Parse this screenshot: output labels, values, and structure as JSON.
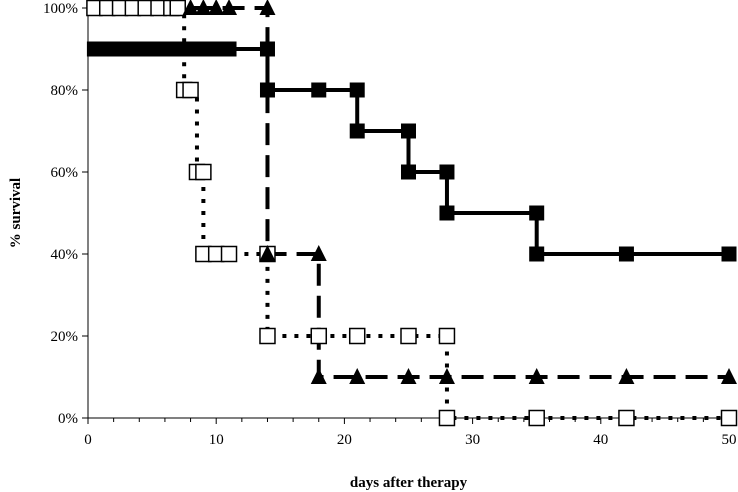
{
  "chart_data": {
    "type": "line",
    "step": true,
    "xlabel": "days after therapy",
    "ylabel": "% survival",
    "xlim": [
      0,
      50
    ],
    "ylim": [
      0,
      100
    ],
    "xticks": [
      0,
      10,
      20,
      30,
      40,
      50
    ],
    "yticks": [
      0,
      20,
      40,
      60,
      80,
      100
    ],
    "xtick_labels": [
      "0",
      "10",
      "20",
      "30",
      "40",
      "50"
    ],
    "ytick_labels": [
      "0%",
      "20%",
      "40%",
      "60%",
      "80%",
      "100%"
    ],
    "grid": false,
    "legend": "none",
    "series": [
      {
        "marker": "filled-square",
        "line": "solid",
        "color": "#000000",
        "x": [
          0.5,
          1,
          2,
          3,
          4,
          5,
          6,
          7,
          8,
          9,
          10,
          11,
          14,
          14,
          18,
          21,
          21,
          25,
          25,
          28,
          28,
          35,
          35,
          42,
          50
        ],
        "y": [
          90,
          90,
          90,
          90,
          90,
          90,
          90,
          90,
          90,
          90,
          90,
          90,
          90,
          80,
          80,
          80,
          70,
          70,
          60,
          60,
          50,
          50,
          40,
          40,
          40
        ]
      },
      {
        "marker": "open-square",
        "line": "dotted",
        "color": "#000000",
        "x": [
          0.5,
          1.5,
          2.5,
          3.5,
          4.5,
          5.5,
          6.5,
          7,
          7.5,
          8,
          8.5,
          9,
          9,
          10,
          11,
          14,
          14,
          18,
          21,
          25,
          28,
          28,
          35,
          42,
          50
        ],
        "y": [
          100,
          100,
          100,
          100,
          100,
          100,
          100,
          100,
          80,
          80,
          60,
          60,
          40,
          40,
          40,
          40,
          20,
          20,
          20,
          20,
          20,
          0,
          0,
          0,
          0
        ]
      },
      {
        "marker": "filled-triangle",
        "line": "dashed",
        "color": "#000000",
        "x": [
          8,
          9,
          10,
          11,
          14,
          14,
          18,
          18,
          21,
          25,
          28,
          35,
          42,
          50
        ],
        "y": [
          100,
          100,
          100,
          100,
          100,
          40,
          40,
          10,
          10,
          10,
          10,
          10,
          10,
          10
        ]
      }
    ]
  }
}
